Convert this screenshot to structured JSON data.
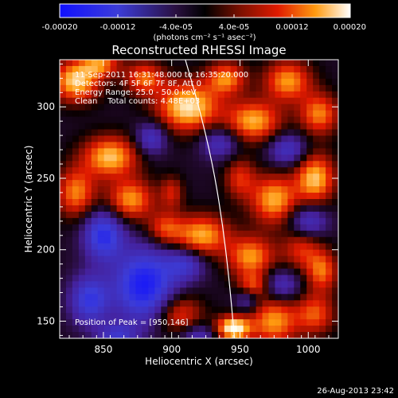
{
  "chart_data": {
    "type": "heatmap",
    "title": "Reconstructed RHESSI Image",
    "xlabel": "Heliocentric X (arcsec)",
    "ylabel": "Heliocentric Y (arcsec)",
    "xlim": [
      818,
      1022
    ],
    "ylim": [
      138,
      333
    ],
    "x_ticks": [
      850,
      900,
      950,
      1000
    ],
    "y_ticks": [
      150,
      200,
      250,
      300
    ],
    "x_tick_labels": [
      "850",
      "900",
      "950",
      "1000"
    ],
    "y_tick_labels": [
      "150",
      "200",
      "250",
      "300"
    ],
    "colorbar": {
      "min": -0.0002,
      "max": 0.0002,
      "ticks": [
        -0.0002,
        -0.00012,
        -4e-05,
        4e-05,
        0.00012,
        0.0002
      ],
      "tick_labels": [
        "-0.00020",
        "-0.00012",
        "-4.0e-05",
        "4.0e-05",
        "0.00012",
        "0.00020"
      ],
      "units": "(photons cm⁻² s⁻¹ asec⁻²)"
    },
    "annotations": {
      "time": "11-Sep-2011 16:31:48.000 to 16:35:20.000",
      "detectors": "Detectors: 4F 5F 6F 7F 8F, Att 0",
      "energy": "Energy Range: 25.0 - 50.0 keV",
      "method": "Clean    Total counts: 4.48E+03",
      "peak": "Position of Peak = [950,146]"
    },
    "peak": [
      950,
      146
    ],
    "limb": {
      "points": [
        [
          910,
          333
        ],
        [
          920,
          300
        ],
        [
          930,
          260
        ],
        [
          937,
          220
        ],
        [
          942,
          180
        ],
        [
          946,
          138
        ]
      ]
    },
    "blobs": [
      {
        "x": 945,
        "y": 145,
        "sx": 9,
        "sy": 6,
        "v": 1.0
      },
      {
        "x": 830,
        "y": 318,
        "sx": 12,
        "sy": 10,
        "v": 0.85
      },
      {
        "x": 855,
        "y": 265,
        "sx": 14,
        "sy": 10,
        "v": 0.8
      },
      {
        "x": 830,
        "y": 240,
        "sx": 10,
        "sy": 12,
        "v": 0.65
      },
      {
        "x": 870,
        "y": 235,
        "sx": 12,
        "sy": 10,
        "v": 0.7
      },
      {
        "x": 912,
        "y": 300,
        "sx": 16,
        "sy": 12,
        "v": 0.9
      },
      {
        "x": 960,
        "y": 290,
        "sx": 14,
        "sy": 10,
        "v": 0.75
      },
      {
        "x": 985,
        "y": 318,
        "sx": 12,
        "sy": 10,
        "v": 0.7
      },
      {
        "x": 1008,
        "y": 295,
        "sx": 10,
        "sy": 10,
        "v": 0.65
      },
      {
        "x": 1005,
        "y": 250,
        "sx": 10,
        "sy": 12,
        "v": 0.8
      },
      {
        "x": 975,
        "y": 235,
        "sx": 12,
        "sy": 12,
        "v": 0.75
      },
      {
        "x": 950,
        "y": 250,
        "sx": 8,
        "sy": 10,
        "v": 0.45
      },
      {
        "x": 922,
        "y": 210,
        "sx": 14,
        "sy": 10,
        "v": 0.75
      },
      {
        "x": 895,
        "y": 215,
        "sx": 9,
        "sy": 8,
        "v": 0.5
      },
      {
        "x": 958,
        "y": 195,
        "sx": 12,
        "sy": 10,
        "v": 0.7
      },
      {
        "x": 995,
        "y": 200,
        "sx": 10,
        "sy": 10,
        "v": 0.45
      },
      {
        "x": 1010,
        "y": 185,
        "sx": 8,
        "sy": 10,
        "v": 0.6
      },
      {
        "x": 905,
        "y": 155,
        "sx": 12,
        "sy": 10,
        "v": 0.55
      },
      {
        "x": 975,
        "y": 150,
        "sx": 12,
        "sy": 12,
        "v": 0.7
      },
      {
        "x": 1005,
        "y": 155,
        "sx": 10,
        "sy": 10,
        "v": 0.55
      },
      {
        "x": 960,
        "y": 175,
        "sx": 8,
        "sy": 6,
        "v": 0.5
      },
      {
        "x": 848,
        "y": 330,
        "sx": 10,
        "sy": 6,
        "v": 0.6
      },
      {
        "x": 880,
        "y": 320,
        "sx": 10,
        "sy": 8,
        "v": 0.6
      },
      {
        "x": 940,
        "y": 320,
        "sx": 10,
        "sy": 8,
        "v": 0.65
      },
      {
        "x": 900,
        "y": 240,
        "sx": 6,
        "sy": 8,
        "v": 0.4
      },
      {
        "x": 850,
        "y": 210,
        "sx": 10,
        "sy": 12,
        "v": -0.8
      },
      {
        "x": 880,
        "y": 175,
        "sx": 16,
        "sy": 18,
        "v": -0.95
      },
      {
        "x": 840,
        "y": 165,
        "sx": 10,
        "sy": 12,
        "v": -0.7
      },
      {
        "x": 910,
        "y": 190,
        "sx": 10,
        "sy": 8,
        "v": -0.5
      },
      {
        "x": 985,
        "y": 270,
        "sx": 10,
        "sy": 8,
        "v": -0.5
      },
      {
        "x": 935,
        "y": 275,
        "sx": 10,
        "sy": 8,
        "v": -0.45
      },
      {
        "x": 885,
        "y": 278,
        "sx": 8,
        "sy": 8,
        "v": -0.5
      },
      {
        "x": 1000,
        "y": 220,
        "sx": 10,
        "sy": 8,
        "v": -0.5
      },
      {
        "x": 980,
        "y": 175,
        "sx": 10,
        "sy": 8,
        "v": -0.45
      },
      {
        "x": 955,
        "y": 165,
        "sx": 6,
        "sy": 6,
        "v": -0.35
      },
      {
        "x": 920,
        "y": 140,
        "sx": 10,
        "sy": 6,
        "v": -0.4
      },
      {
        "x": 860,
        "y": 140,
        "sx": 10,
        "sy": 6,
        "v": -0.5
      }
    ]
  },
  "footer": {
    "date": "26-Aug-2013 23:42"
  }
}
